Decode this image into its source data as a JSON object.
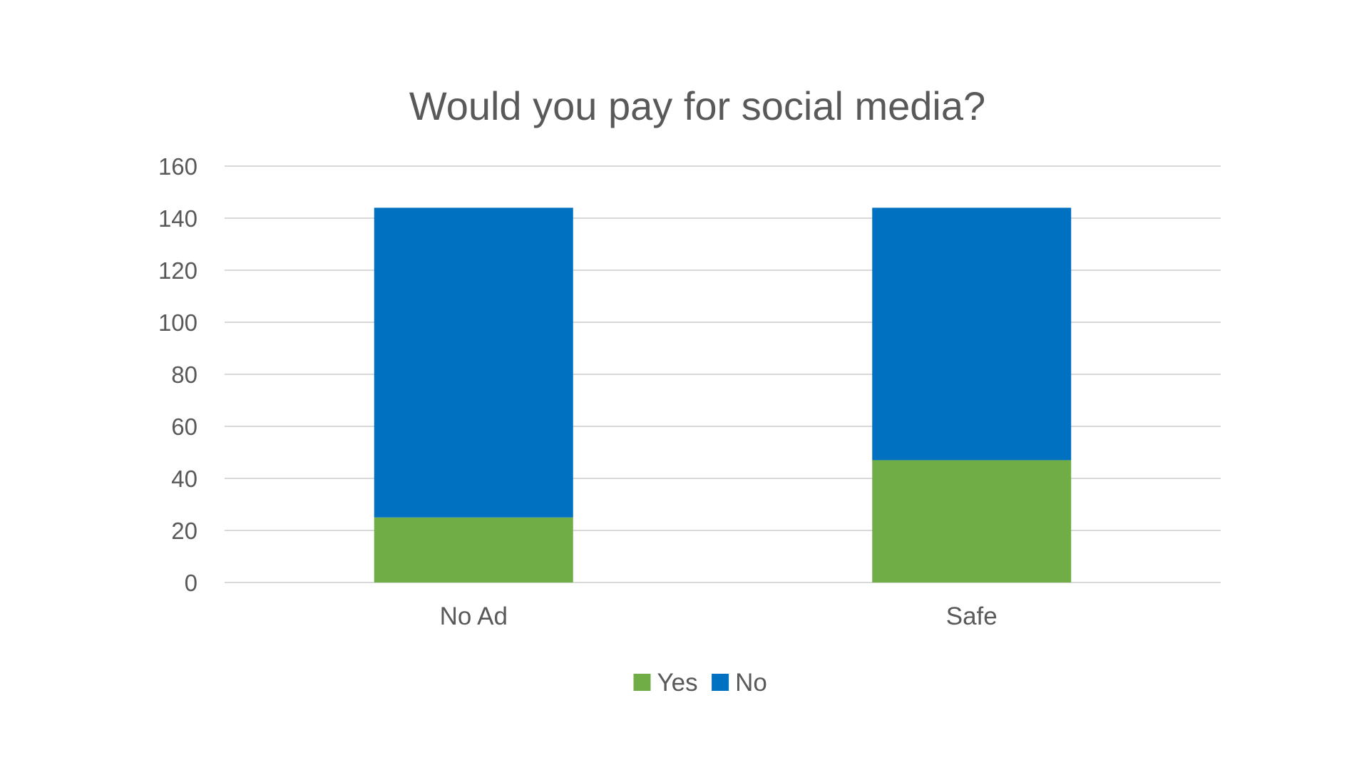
{
  "chart_data": {
    "type": "bar",
    "stacked": true,
    "title": "Would you pay for social media?",
    "xlabel": "",
    "ylabel": "",
    "categories": [
      "No Ad",
      "Safe"
    ],
    "series": [
      {
        "name": "Yes",
        "color": "#70ad47",
        "values": [
          25,
          47
        ]
      },
      {
        "name": "No",
        "color": "#0070c0",
        "values": [
          119,
          97
        ]
      }
    ],
    "ylim": [
      0,
      160
    ],
    "yticks": [
      0,
      20,
      40,
      60,
      80,
      100,
      120,
      140,
      160
    ],
    "grid": true,
    "legend_position": "bottom"
  }
}
